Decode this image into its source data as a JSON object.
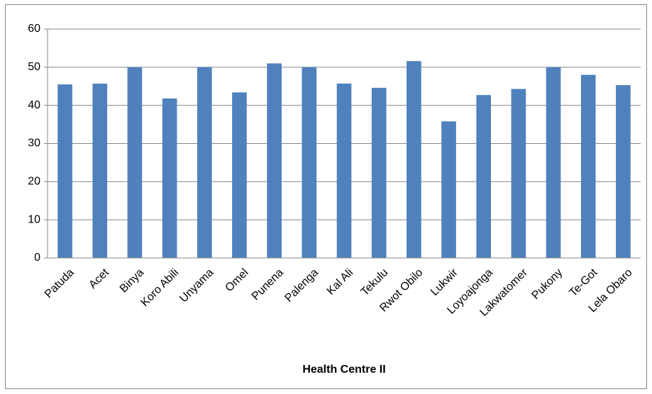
{
  "chart_data": {
    "type": "bar",
    "x_label": "Health Centre II",
    "categories": [
      "Patuda",
      "Acet",
      "Binya",
      "Koro Abili",
      "Unyama",
      "Omel",
      "Punena",
      "Palenga",
      "Kal Ali",
      "Tekulu",
      "Rwot Obilo",
      "Lukwir",
      "Loyoajonga",
      "Lakwatomer",
      "Pukony",
      "Te-Got",
      "Lela Obaro"
    ],
    "values": [
      45.5,
      45.7,
      50,
      41.8,
      50,
      43.4,
      51,
      50,
      45.7,
      44.6,
      51.6,
      35.8,
      42.7,
      44.3,
      50,
      48,
      45.3
    ],
    "color": "#4f81bd",
    "ylim": [
      0,
      60
    ],
    "yticks": [
      0,
      10,
      20,
      30,
      40,
      50,
      60
    ],
    "grid": true
  }
}
